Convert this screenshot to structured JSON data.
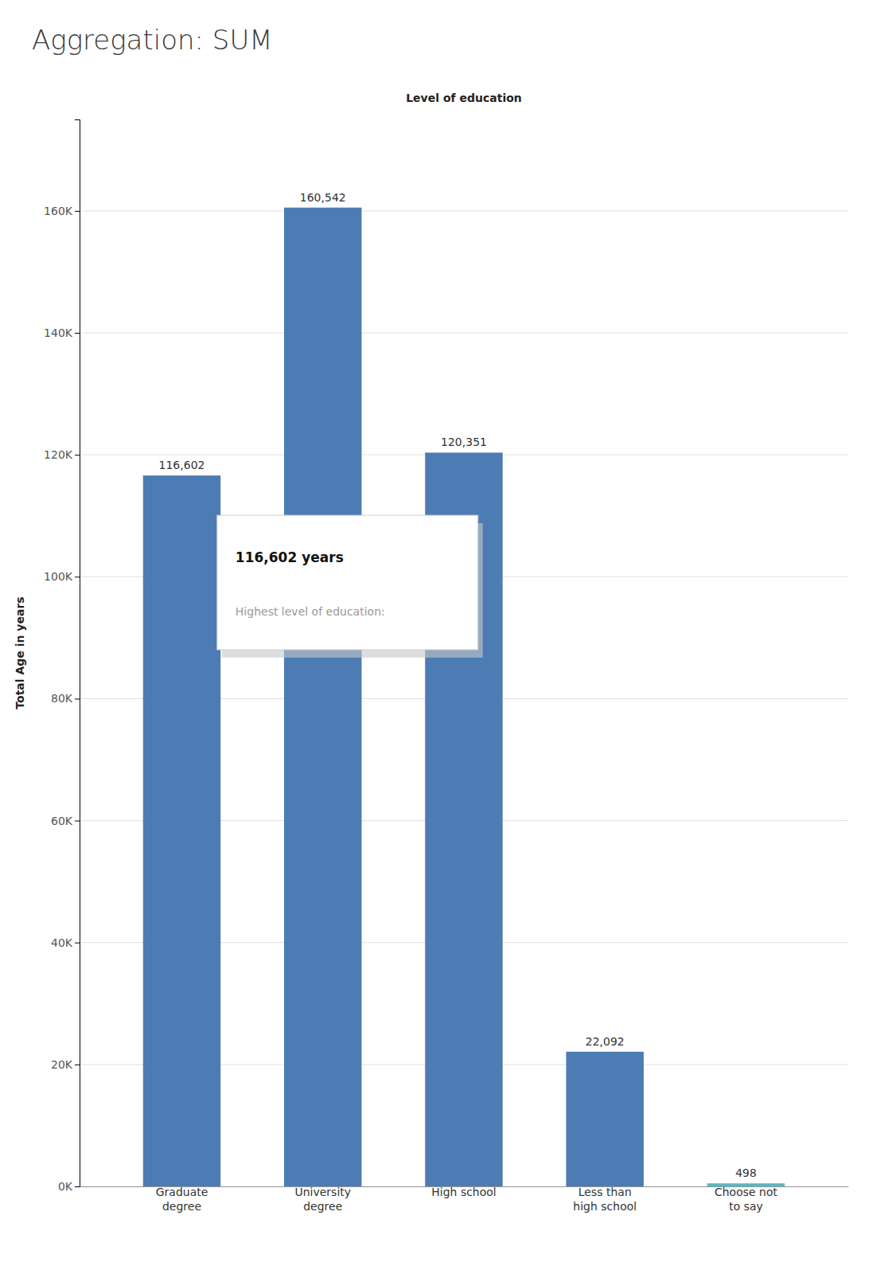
{
  "chart_data": {
    "type": "bar",
    "title": "Aggregation: SUM",
    "x_label": "Level of education",
    "y_label": "Total Age in years",
    "categories": [
      "Graduate\ndegree",
      "University\ndegree",
      "High school",
      "Less than\nhigh school",
      "Choose not\nto say"
    ],
    "values": [
      116602,
      160542,
      120351,
      22092,
      498
    ],
    "value_labels": [
      "116,602",
      "160,542",
      "120,351",
      "22,092",
      "498"
    ],
    "data_labels": true,
    "colors": [
      "#4d7cb5",
      "#4d7cb5",
      "#4d7cb5",
      "#4d7cb5",
      "#5ab8c0"
    ],
    "ylim": [
      0,
      175000
    ],
    "yticks": [
      {
        "value": 0,
        "label": "0K"
      },
      {
        "value": 20000,
        "label": "20K"
      },
      {
        "value": 40000,
        "label": "40K"
      },
      {
        "value": 60000,
        "label": "60K"
      },
      {
        "value": 80000,
        "label": "80K"
      },
      {
        "value": 100000,
        "label": "100K"
      },
      {
        "value": 120000,
        "label": "120K"
      },
      {
        "value": 140000,
        "label": "140K"
      },
      {
        "value": 160000,
        "label": "160K"
      }
    ],
    "grid": true,
    "annotations": [
      "116,602 years",
      "Highest level of education:"
    ]
  }
}
